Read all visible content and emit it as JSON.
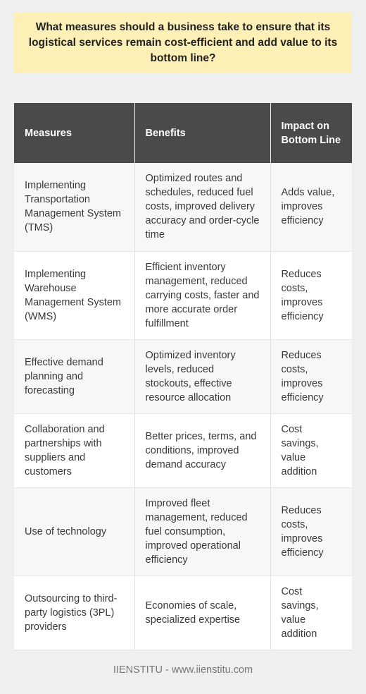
{
  "question": "What measures should a business take to ensure that its logistical services remain cost-efficient and add value to its bottom line?",
  "table": {
    "headers": [
      "Measures",
      "Benefits",
      "Impact on Bottom Line"
    ],
    "rows": [
      {
        "measure": "Implementing Transportation Management System (TMS)",
        "benefits": "Optimized routes and schedules, reduced fuel costs, improved delivery accuracy and order-cycle time",
        "impact": "Adds value, improves efficiency"
      },
      {
        "measure": "Implementing Warehouse Management System (WMS)",
        "benefits": "Efficient inventory management, reduced carrying costs, faster and more accurate order fulfillment",
        "impact": "Reduces costs, improves efficiency"
      },
      {
        "measure": "Effective demand planning and forecasting",
        "benefits": "Optimized inventory levels, reduced stockouts, effective resource allocation",
        "impact": "Reduces costs, improves efficiency"
      },
      {
        "measure": "Collaboration and partnerships with suppliers and customers",
        "benefits": "Better prices, terms, and conditions, improved demand accuracy",
        "impact": "Cost savings, value addition"
      },
      {
        "measure": "Use of technology",
        "benefits": "Improved fleet management, reduced fuel consumption, improved operational efficiency",
        "impact": "Reduces costs, improves efficiency"
      },
      {
        "measure": "Outsourcing to third-party logistics (3PL) providers",
        "benefits": "Economies of scale, specialized expertise",
        "impact": "Cost savings, value addition"
      }
    ]
  },
  "footer": "IIENSTITU - www.iienstitu.com"
}
